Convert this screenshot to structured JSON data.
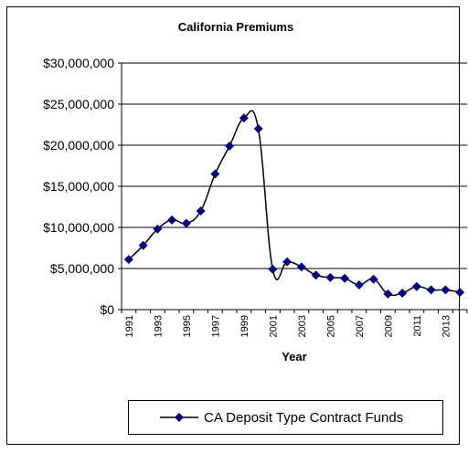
{
  "chart_data": {
    "type": "line",
    "title": "California Premiums",
    "xlabel": "Year",
    "ylabel": "",
    "ylim": [
      0,
      30000000
    ],
    "yticks": [
      "$0",
      "$5,000,000",
      "$10,000,000",
      "$15,000,000",
      "$20,000,000",
      "$25,000,000",
      "$30,000,000"
    ],
    "ytick_values": [
      0,
      5000000,
      10000000,
      15000000,
      20000000,
      25000000,
      30000000
    ],
    "x": [
      1991,
      1992,
      1993,
      1994,
      1995,
      1996,
      1997,
      1998,
      1999,
      2000,
      2001,
      2002,
      2003,
      2004,
      2005,
      2006,
      2007,
      2008,
      2009,
      2010,
      2011,
      2012,
      2013,
      2014
    ],
    "xtick_labels": [
      "1991",
      "1993",
      "1995",
      "1997",
      "1999",
      "2001",
      "2003",
      "2005",
      "2007",
      "2009",
      "2011",
      "2013"
    ],
    "grid": true,
    "legend": "bottom",
    "series": [
      {
        "name": "CA Deposit Type Contract Funds",
        "color": "#000080",
        "values": [
          6100000,
          7800000,
          9800000,
          10900000,
          10500000,
          12000000,
          16500000,
          19900000,
          23300000,
          22000000,
          4900000,
          5800000,
          5200000,
          4200000,
          3900000,
          3800000,
          3000000,
          3700000,
          1900000,
          2000000,
          2800000,
          2400000,
          2400000,
          2100000
        ]
      }
    ]
  }
}
